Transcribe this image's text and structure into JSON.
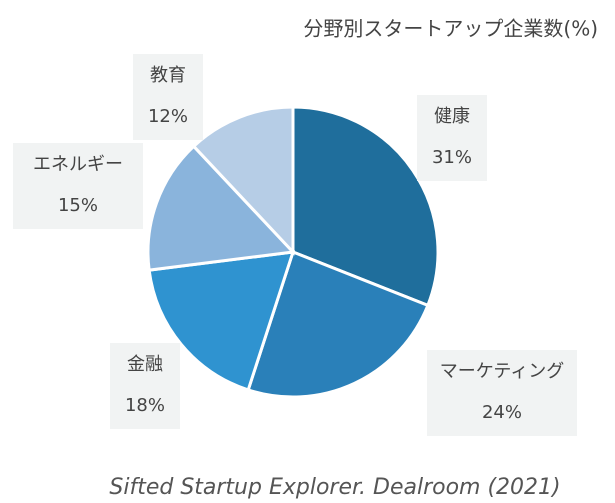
{
  "chart_data": {
    "type": "pie",
    "title": "分野別スタートアップ企業数(%)",
    "categories": [
      "健康",
      "マーケティング",
      "金融",
      "エネルギー",
      "教育"
    ],
    "values": [
      31,
      24,
      18,
      15,
      12
    ],
    "value_labels": [
      "31%",
      "24%",
      "18%",
      "15%",
      "12%"
    ],
    "colors": [
      "#1f6e9c",
      "#2a80b9",
      "#2f93d0",
      "#8ab4dc",
      "#b6cde6"
    ],
    "source": "Sifted Startup Explorer. Dealroom (2021)"
  }
}
